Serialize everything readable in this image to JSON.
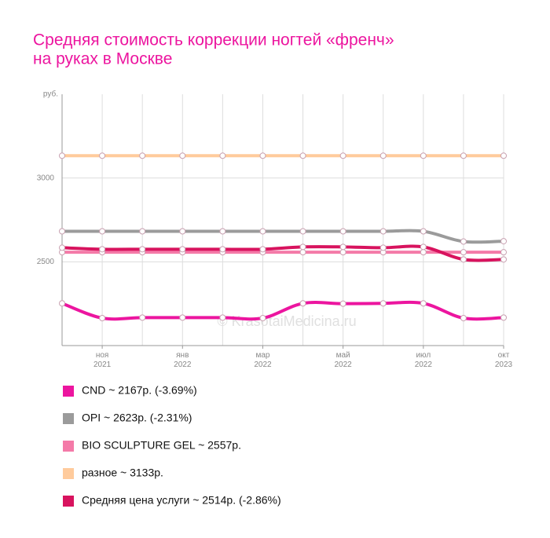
{
  "chart_data": {
    "type": "line",
    "title": [
      "Средняя стоимость коррекции ногтей «френч»",
      "на руках в Москве"
    ],
    "y_label": "руб.",
    "watermark": "© KrasotaiMedicina.ru",
    "categories": [
      null,
      "ноя 2021",
      null,
      "янв 2022",
      null,
      "мар 2022",
      null,
      "май 2022",
      null,
      "июл 2022",
      null,
      "окт 2023"
    ],
    "ylim": [
      2000,
      3500
    ],
    "yticks": [
      2500,
      3000
    ],
    "grid": true,
    "series": [
      {
        "name": "CND ~ 2167р. (-3.69%)",
        "color": "#ec159f",
        "values": [
          2252,
          2164,
          2167,
          2167,
          2167,
          2164,
          2252,
          2250,
          2252,
          2252,
          2164,
          2167
        ]
      },
      {
        "name": "OPI ~ 2623р. (-2.31%)",
        "color": "#9b9b9b",
        "values": [
          2682,
          2682,
          2682,
          2682,
          2682,
          2682,
          2682,
          2682,
          2682,
          2682,
          2621,
          2623
        ]
      },
      {
        "name": "BIO SCULPTURE GEL ~ 2557р.",
        "color": "#f47aa8",
        "values": [
          2557,
          2557,
          2557,
          2557,
          2557,
          2557,
          2557,
          2557,
          2557,
          2557,
          2557,
          2557
        ]
      },
      {
        "name": "разное ~ 3133р.",
        "color": "#ffcb9c",
        "values": [
          3133,
          3133,
          3133,
          3133,
          3133,
          3133,
          3133,
          3133,
          3133,
          3133,
          3133,
          3133
        ]
      },
      {
        "name": "Средняя цена услуги ~ 2514р. (-2.86%)",
        "color": "#d8135e",
        "values": [
          2584,
          2575,
          2575,
          2575,
          2575,
          2575,
          2589,
          2589,
          2584,
          2589,
          2514,
          2514
        ]
      }
    ]
  }
}
